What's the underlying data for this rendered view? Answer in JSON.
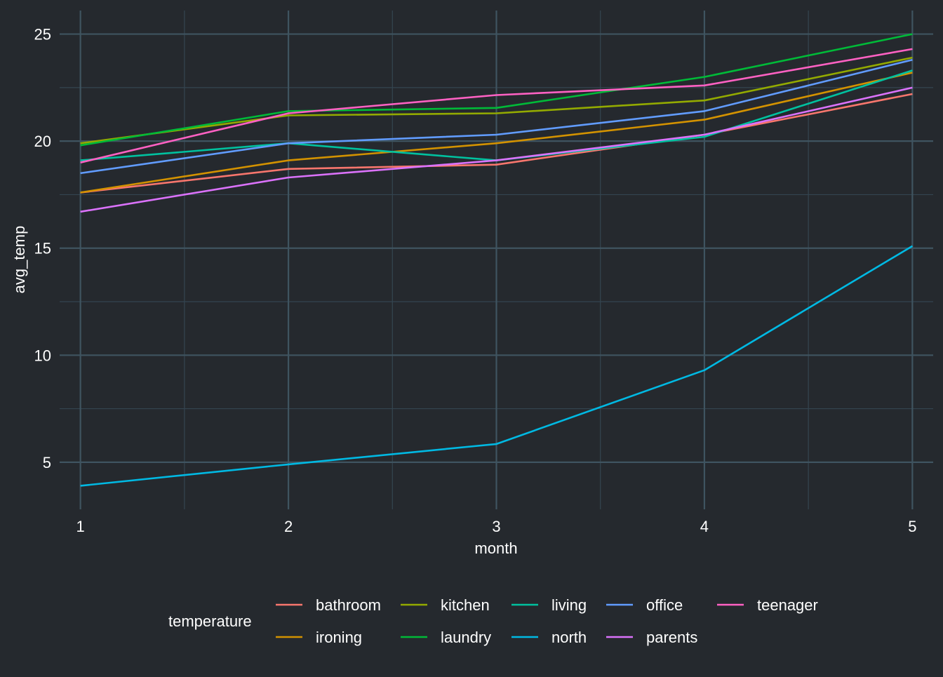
{
  "colors": {
    "background": "#25292e",
    "grid_major": "#3f5460",
    "grid_minor": "#344550",
    "text": "#ffffff"
  },
  "chart_data": {
    "type": "line",
    "title": "",
    "xlabel": "month",
    "ylabel": "avg_temp",
    "x": [
      1,
      2,
      3,
      4,
      5
    ],
    "xlim": [
      0.9,
      5.1
    ],
    "ylim": [
      2.8,
      26.1
    ],
    "xticks": [
      "1",
      "2",
      "3",
      "4",
      "5"
    ],
    "yticks": [
      "5",
      "10",
      "15",
      "20",
      "25"
    ],
    "ytick_values": [
      5,
      10,
      15,
      20,
      25
    ],
    "grid": true,
    "legend": {
      "title": "temperature",
      "position": "bottom",
      "ncol": 5
    },
    "series": [
      {
        "name": "bathroom",
        "color": "#F8766D",
        "values": [
          17.6,
          18.7,
          18.9,
          20.3,
          22.2
        ]
      },
      {
        "name": "ironing",
        "color": "#D39200",
        "values": [
          17.6,
          19.1,
          19.9,
          21.0,
          23.2
        ]
      },
      {
        "name": "kitchen",
        "color": "#93AA00",
        "values": [
          19.9,
          21.2,
          21.3,
          21.9,
          23.9
        ]
      },
      {
        "name": "laundry",
        "color": "#00BA38",
        "values": [
          19.8,
          21.4,
          21.55,
          23.0,
          25.0
        ]
      },
      {
        "name": "living",
        "color": "#00C19F",
        "values": [
          19.1,
          19.9,
          19.1,
          20.2,
          23.3
        ]
      },
      {
        "name": "north",
        "color": "#00B9E3",
        "values": [
          3.9,
          4.9,
          5.85,
          9.3,
          15.1
        ]
      },
      {
        "name": "office",
        "color": "#619CFF",
        "values": [
          18.5,
          19.9,
          20.3,
          21.4,
          23.8
        ]
      },
      {
        "name": "parents",
        "color": "#DB72FB",
        "values": [
          16.7,
          18.3,
          19.1,
          20.3,
          22.5
        ]
      },
      {
        "name": "teenager",
        "color": "#FF61C3",
        "values": [
          19.0,
          21.3,
          22.15,
          22.6,
          24.3
        ]
      }
    ]
  }
}
